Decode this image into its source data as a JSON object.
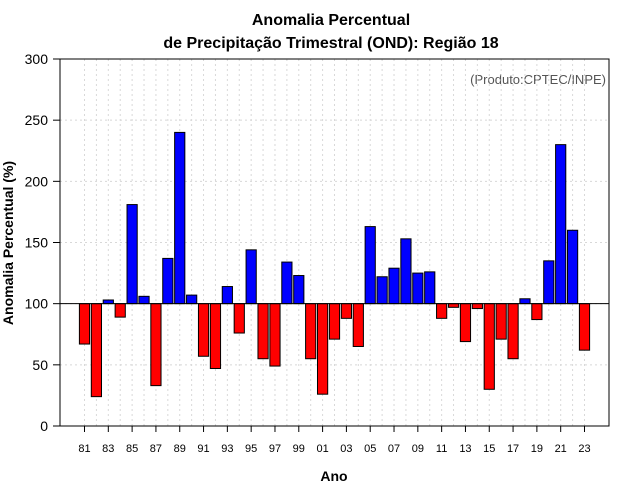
{
  "chart_data": {
    "type": "bar",
    "title": "Anomalia Percentual",
    "subtitle": "de Precipitação Trimestral (OND): Região 18",
    "xlabel": "Ano",
    "ylabel": "Anomalia Percentual (%)",
    "credit": "(Produto:CPTEC/INPE)",
    "ylim": [
      0,
      300
    ],
    "yticks": [
      0,
      50,
      100,
      150,
      200,
      250,
      300
    ],
    "baseline": 100,
    "grid": true,
    "colors": {
      "above": "#0000ff",
      "below": "#ff0000",
      "edge": "#000000",
      "grid": "#d8d8d8"
    },
    "categories": [
      "81",
      "82",
      "83",
      "84",
      "85",
      "86",
      "87",
      "88",
      "89",
      "90",
      "91",
      "92",
      "93",
      "94",
      "95",
      "96",
      "97",
      "98",
      "99",
      "00",
      "01",
      "02",
      "03",
      "04",
      "05",
      "06",
      "07",
      "08",
      "09",
      "10",
      "11",
      "12",
      "13",
      "14",
      "15",
      "16",
      "17",
      "18",
      "19",
      "20",
      "21",
      "22",
      "23"
    ],
    "xtick_labels": [
      "81",
      "83",
      "85",
      "87",
      "89",
      "91",
      "93",
      "95",
      "97",
      "99",
      "01",
      "03",
      "05",
      "07",
      "09",
      "11",
      "13",
      "15",
      "17",
      "19",
      "21",
      "23"
    ],
    "values": [
      67,
      24,
      103,
      89,
      181,
      106,
      33,
      137,
      240,
      107,
      57,
      47,
      114,
      76,
      144,
      55,
      49,
      134,
      123,
      55,
      26,
      71,
      88,
      65,
      163,
      122,
      129,
      153,
      125,
      126,
      88,
      97,
      69,
      96,
      30,
      71,
      55,
      104,
      87,
      135,
      230,
      160,
      62
    ]
  }
}
